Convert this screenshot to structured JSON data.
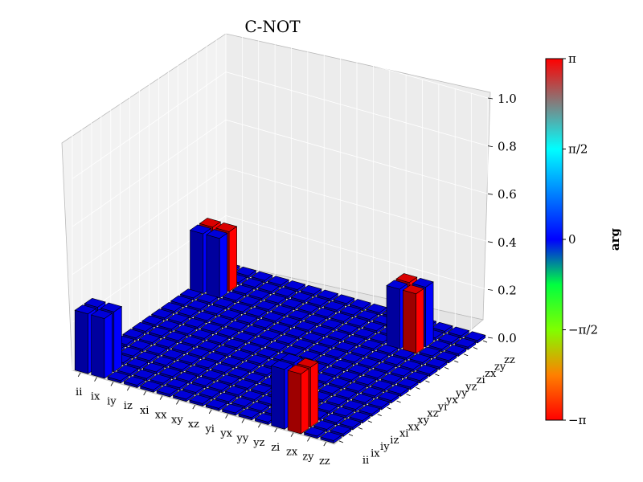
{
  "chart_data": {
    "type": "bar3d",
    "title": "C-NOT",
    "xlabels": [
      "ii",
      "ix",
      "iy",
      "iz",
      "xi",
      "xx",
      "xy",
      "xz",
      "yi",
      "yx",
      "yy",
      "yz",
      "zi",
      "zx",
      "zy",
      "zz"
    ],
    "ylabels": [
      "ii",
      "ix",
      "iy",
      "iz",
      "xi",
      "xx",
      "xy",
      "xz",
      "yi",
      "yx",
      "yy",
      "yz",
      "zi",
      "zx",
      "zy",
      "zz"
    ],
    "zlim": [
      0,
      1
    ],
    "zticks": [
      "0.0",
      "0.2",
      "0.4",
      "0.6",
      "0.8",
      "1.0"
    ],
    "baseline_height": 0.01,
    "bars": [
      {
        "x": "ii",
        "y": "ii",
        "value": 0.25,
        "phase": 0
      },
      {
        "x": "ix",
        "y": "ii",
        "value": 0.25,
        "phase": 0
      },
      {
        "x": "ii",
        "y": "ix",
        "value": 0.25,
        "phase": 0
      },
      {
        "x": "ix",
        "y": "ix",
        "value": 0.25,
        "phase": 0
      },
      {
        "x": "ii",
        "y": "zi",
        "value": 0.25,
        "phase": 0
      },
      {
        "x": "ix",
        "y": "zi",
        "value": 0.25,
        "phase": 0
      },
      {
        "x": "ii",
        "y": "zx",
        "value": 0.25,
        "phase": 3.14159
      },
      {
        "x": "ix",
        "y": "zx",
        "value": 0.25,
        "phase": 3.14159
      },
      {
        "x": "zi",
        "y": "ii",
        "value": 0.25,
        "phase": 0
      },
      {
        "x": "zx",
        "y": "ii",
        "value": 0.25,
        "phase": 3.14159
      },
      {
        "x": "zi",
        "y": "ix",
        "value": 0.25,
        "phase": 0
      },
      {
        "x": "zx",
        "y": "ix",
        "value": 0.25,
        "phase": 3.14159
      },
      {
        "x": "zi",
        "y": "zi",
        "value": 0.25,
        "phase": 0
      },
      {
        "x": "zx",
        "y": "zi",
        "value": 0.25,
        "phase": 3.14159
      },
      {
        "x": "zi",
        "y": "zx",
        "value": 0.25,
        "phase": 3.14159
      },
      {
        "x": "zx",
        "y": "zx",
        "value": 0.25,
        "phase": 0
      }
    ],
    "colorbar": {
      "label": "arg",
      "ticks": [
        "π",
        "π/2",
        "0",
        "−π/2",
        "−π"
      ],
      "range": [
        -3.14159,
        3.14159
      ],
      "colormap": "jet"
    }
  }
}
